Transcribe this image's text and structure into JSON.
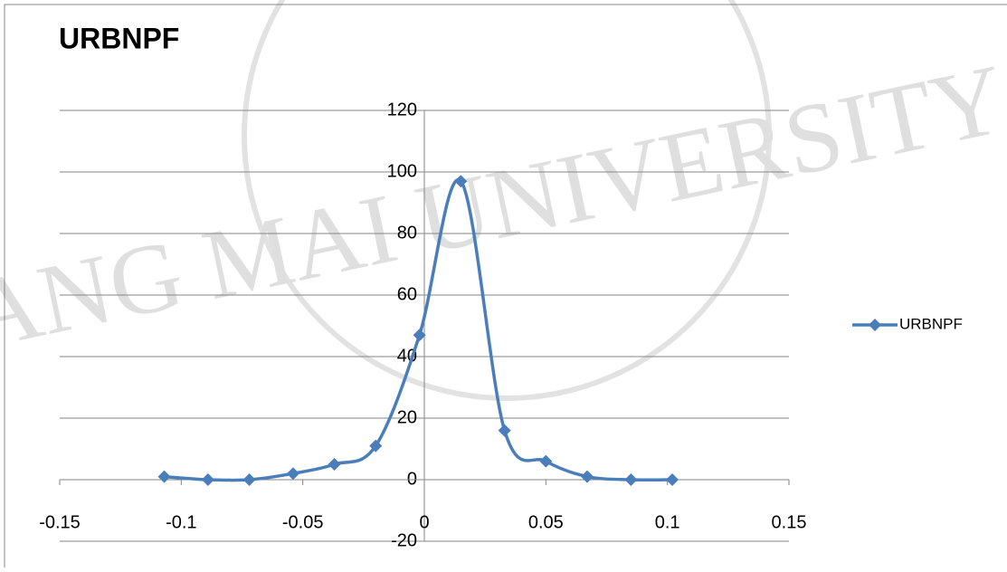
{
  "chart_data": {
    "type": "scatter-smooth",
    "title": "URBNPF",
    "watermark": "ANG MAI UNIVERSITY",
    "x": [
      -0.107,
      -0.089,
      -0.072,
      -0.054,
      -0.037,
      -0.02,
      -0.002,
      0.015,
      0.033,
      0.05,
      0.067,
      0.085,
      0.102
    ],
    "series": [
      {
        "name": "URBNPF",
        "color": "#4a7ebb",
        "values": [
          1,
          0,
          0,
          2,
          5,
          11,
          47,
          97,
          16,
          6,
          1,
          0,
          0
        ]
      }
    ],
    "xlim": [
      -0.15,
      0.15
    ],
    "xticks": [
      -0.15,
      -0.1,
      -0.05,
      0,
      0.05,
      0.1,
      0.15
    ],
    "ylim": [
      -20,
      120
    ],
    "yticks": [
      -20,
      0,
      20,
      40,
      60,
      80,
      100,
      120
    ],
    "grid": true,
    "legend": "right"
  }
}
